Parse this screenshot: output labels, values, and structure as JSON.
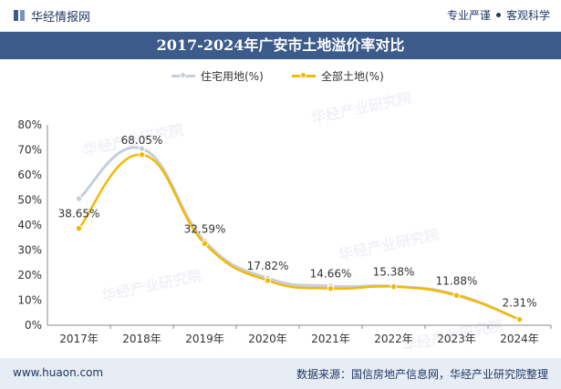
{
  "header": {
    "brand": "华经情报网",
    "tagline_left": "专业严谨",
    "tagline_right": "客观科学",
    "title": "2017-2024年广安市土地溢价率对比"
  },
  "footer": {
    "website": "www.huaon.com",
    "source": "数据来源：国信房地产信息网，华经产业研究院整理"
  },
  "watermark": "华经产业研究院",
  "colors": {
    "residential": "#c5cedb",
    "total": "#f5b800",
    "brand": "#3c5b8a"
  },
  "chart_data": {
    "type": "line",
    "categories": [
      "2017年",
      "2018年",
      "2019年",
      "2020年",
      "2021年",
      "2022年",
      "2023年",
      "2024年"
    ],
    "series": [
      {
        "name": "住宅用地(%)",
        "values": [
          50.5,
          70.5,
          33.5,
          18.8,
          15.6,
          15.6,
          12.2,
          2.31
        ]
      },
      {
        "name": "全部土地(%)",
        "values": [
          38.65,
          68.05,
          32.59,
          17.82,
          14.66,
          15.38,
          11.88,
          2.31
        ]
      }
    ],
    "data_labels": [
      "38.65%",
      "68.05%",
      "32.59%",
      "17.82%",
      "14.66%",
      "15.38%",
      "11.88%",
      "2.31%"
    ],
    "y_ticks": [
      "0%",
      "10%",
      "20%",
      "30%",
      "40%",
      "50%",
      "60%",
      "70%",
      "80%"
    ],
    "ylim": [
      0,
      80
    ],
    "legend_position": "top-center",
    "grid": false
  }
}
